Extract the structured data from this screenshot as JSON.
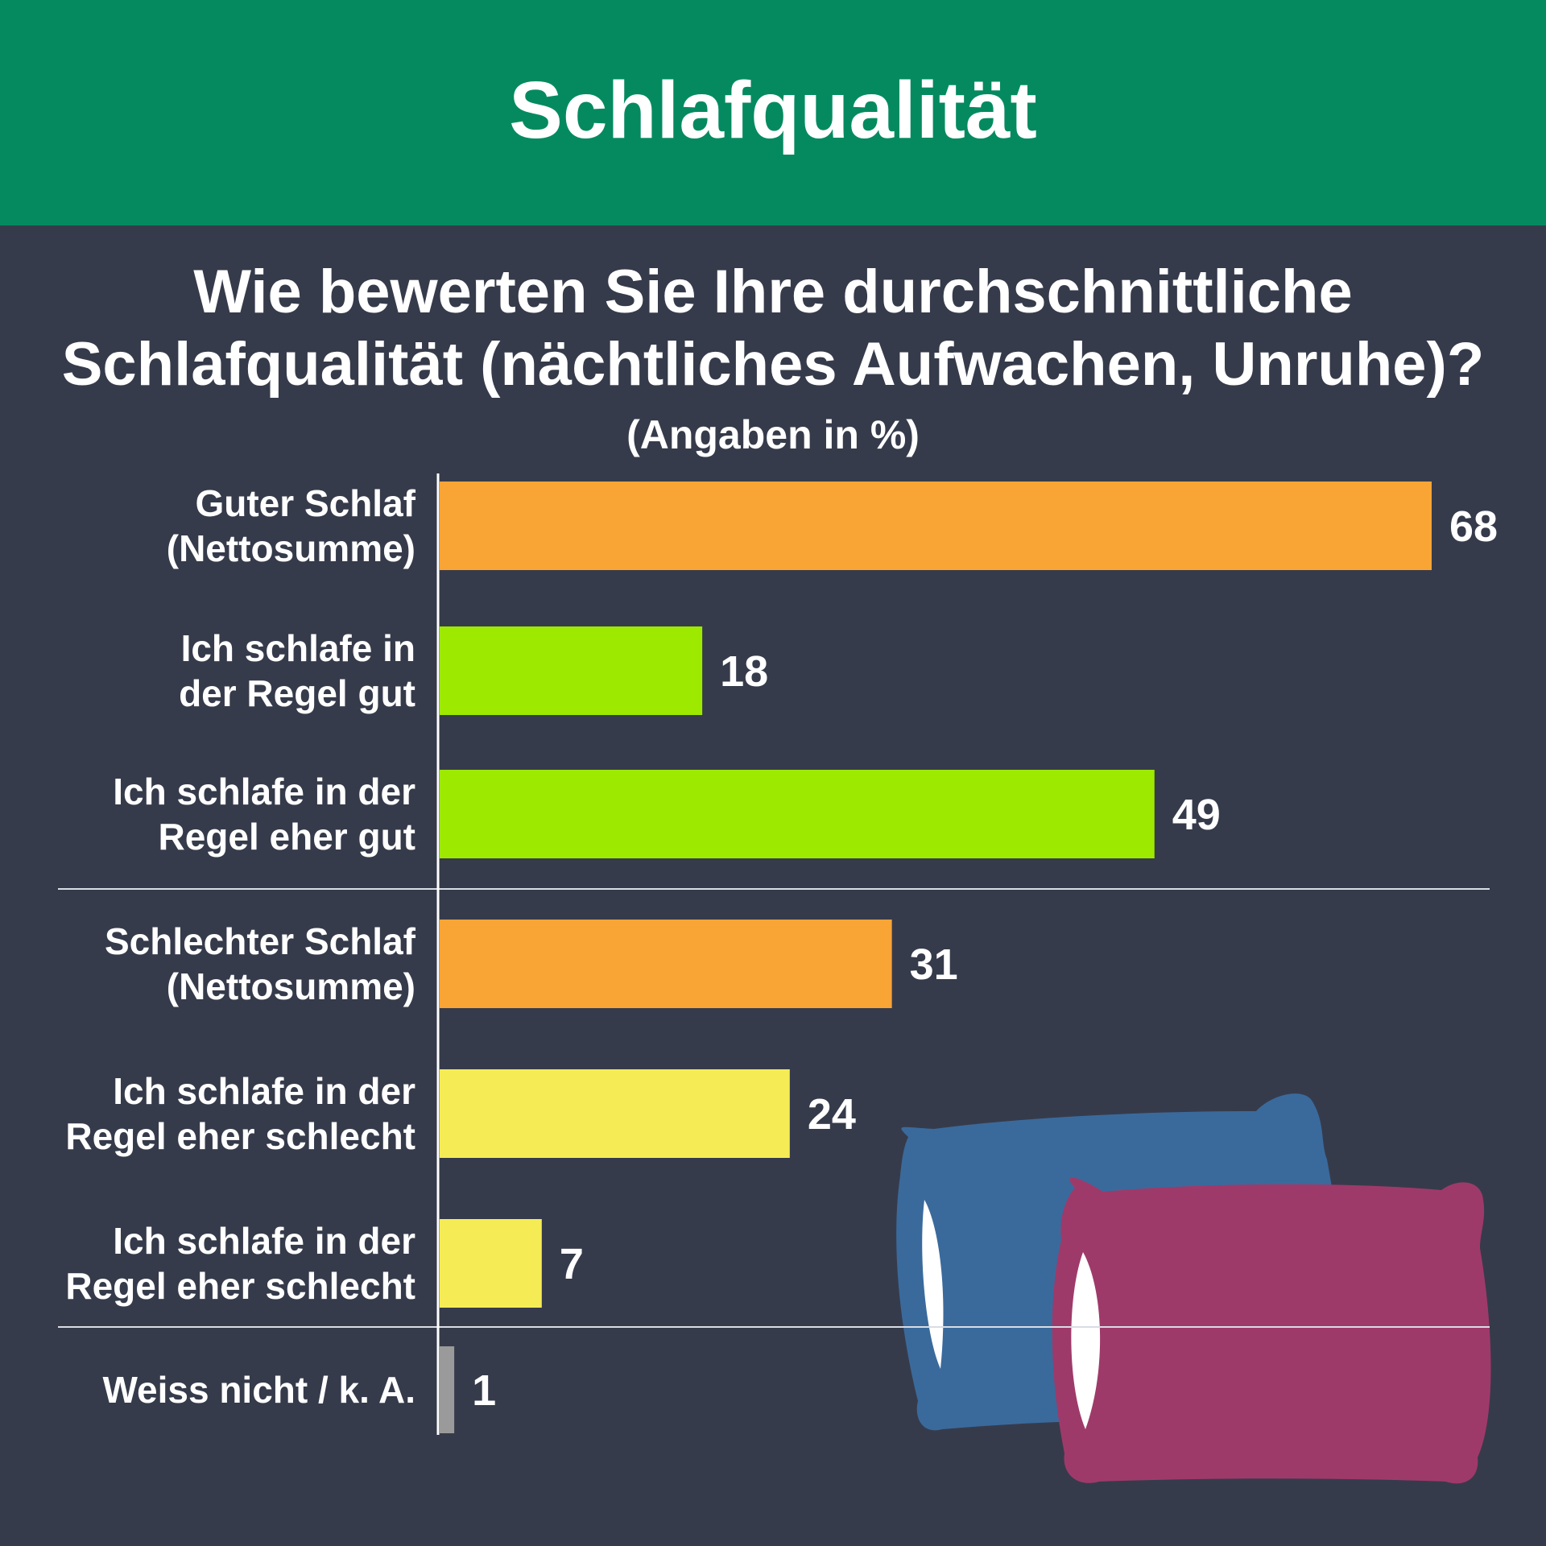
{
  "header": {
    "title": "Schlafqualität"
  },
  "chart_data": {
    "type": "bar",
    "orientation": "horizontal",
    "title": "Wie bewerten Sie Ihre durchschnittliche Schlafqualität (nächtliches Aufwachen, Unruhe)?",
    "subtitle": "(Angaben in %)",
    "xlim": [
      0,
      68
    ],
    "grid": false,
    "categories": [
      [
        "Guter Schlaf",
        "(Nettosumme)"
      ],
      [
        "Ich schlafe in",
        "der Regel gut"
      ],
      [
        "Ich schlafe in der",
        "Regel eher gut"
      ],
      [
        "Schlechter Schlaf",
        "(Nettosumme)"
      ],
      [
        "Ich schlafe in der",
        "Regel eher schlecht"
      ],
      [
        "Ich schlafe in der",
        "Regel eher schlecht"
      ],
      [
        "Weiss nicht / k. A."
      ]
    ],
    "values": [
      68,
      18,
      49,
      31,
      24,
      7,
      1
    ],
    "colors": [
      "#f8a535",
      "#9de900",
      "#9de900",
      "#f8a535",
      "#f5ec55",
      "#f5ec55",
      "#9a9a9a"
    ],
    "group_separators_after": [
      2,
      5
    ]
  },
  "decoration": {
    "pillow_back_color": "#3a6a9c",
    "pillow_front_color": "#9e3a6a"
  }
}
